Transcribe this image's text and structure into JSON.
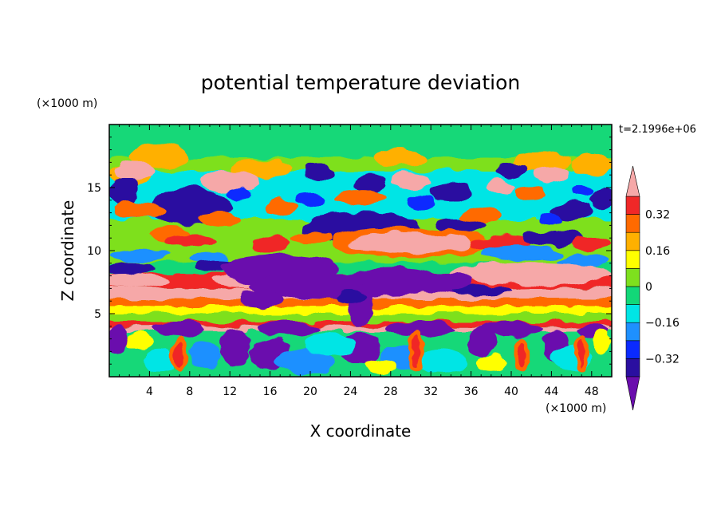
{
  "chart_data": {
    "type": "heatmap",
    "title": "potential temperature deviation",
    "xlabel": "X coordinate",
    "ylabel": "Z coordinate",
    "x_unit": "(×1000 m)",
    "y_unit": "(×1000 m)",
    "time_label": "t=2.1996e+06",
    "xlim": [
      0,
      50
    ],
    "ylim": [
      0,
      20
    ],
    "x_ticks": [
      "4",
      "8",
      "12",
      "16",
      "20",
      "24",
      "28",
      "32",
      "36",
      "40",
      "44",
      "48"
    ],
    "y_ticks": [
      "5",
      "10",
      "15"
    ],
    "colorbar": {
      "labels": [
        "0.32",
        "0.16",
        "0",
        "-0.16",
        "-0.32"
      ],
      "levels": [
        -0.4,
        -0.32,
        -0.24,
        -0.16,
        -0.08,
        0,
        0.08,
        0.16,
        0.24,
        0.32,
        0.4
      ],
      "colors": [
        "#6a0dad",
        "#2a0fa0",
        "#0a2aff",
        "#1e90ff",
        "#00e5e5",
        "#12d878",
        "#7ee01e",
        "#ffff00",
        "#ffb000",
        "#ff6a00",
        "#f02828",
        "#f6a8a8"
      ],
      "extend": "both"
    },
    "grid": false,
    "legend_position": "right"
  }
}
